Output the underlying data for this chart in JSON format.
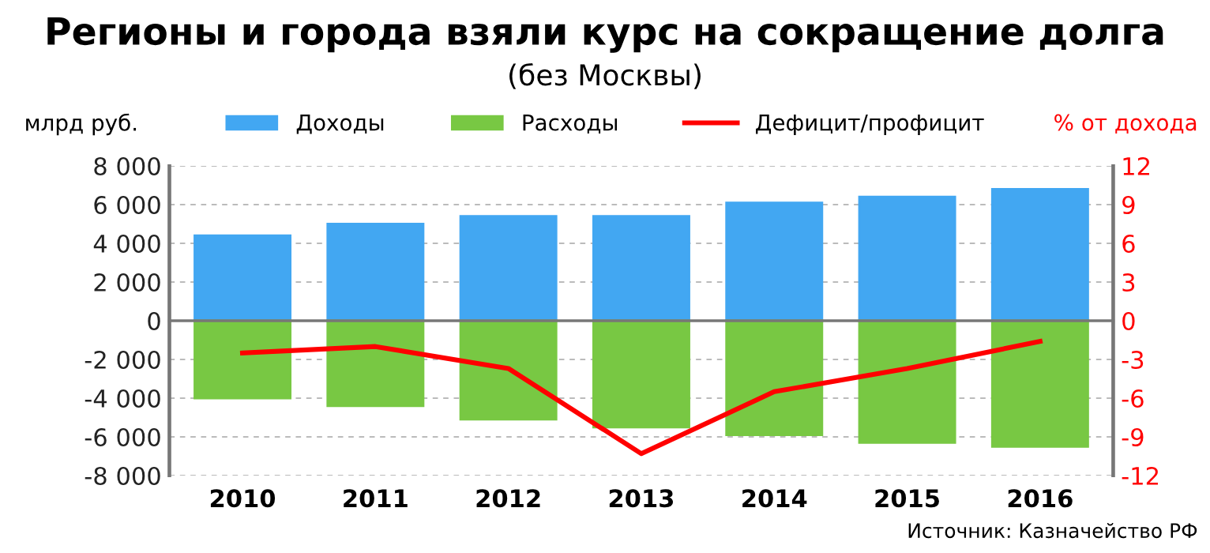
{
  "chart_data": {
    "type": "bar",
    "title": "Регионы и города взяли курс на сокращение долга",
    "subtitle": "(без Москвы)",
    "ylabel": "млрд руб.",
    "y2label": "% от дохода",
    "annotations": [
      "Источник: Казначейство РФ"
    ],
    "categories": [
      "2010",
      "2011",
      "2012",
      "2013",
      "2014",
      "2015",
      "2016"
    ],
    "series": [
      {
        "name": "Доходы",
        "color": "#42a7f2",
        "values": [
          4400,
          5000,
          5400,
          5400,
          6100,
          6400,
          6800
        ]
      },
      {
        "name": "Расходы",
        "color": "#78c843",
        "values": [
          -4000,
          -4400,
          -5100,
          -5500,
          -5900,
          -6300,
          -6500
        ]
      },
      {
        "name": "Дефицит/профицит",
        "type": "line",
        "axis": "y2",
        "color": "#ff0000",
        "values": [
          -2.5,
          -2,
          -3.7,
          -10.3,
          -5.5,
          -3.7,
          -1.6
        ]
      }
    ],
    "stacked": true,
    "ylim": [
      -8000,
      8000
    ],
    "yticks": [
      {
        "value": -8000,
        "label": "-8 000"
      },
      {
        "value": -6000,
        "label": "-6 000"
      },
      {
        "value": -4000,
        "label": "-4 000"
      },
      {
        "value": -2000,
        "label": "-2 000"
      },
      0,
      {
        "value": 2000,
        "label": "2 000"
      },
      {
        "value": 4000,
        "label": "4 000"
      },
      {
        "value": 6000,
        "label": "6 000"
      },
      {
        "value": 8000,
        "label": "8 000"
      }
    ],
    "y2lim": [
      -12,
      12
    ],
    "y2ticks": [
      {
        "value": -12,
        "label": "-12"
      },
      {
        "value": -9,
        "label": "-9"
      },
      {
        "value": -6,
        "label": "-6"
      },
      {
        "value": -3,
        "label": "-3"
      },
      0,
      3,
      6,
      9,
      12
    ],
    "grid": "y",
    "legend": "top",
    "marker": "none",
    "line_style": "solid"
  }
}
